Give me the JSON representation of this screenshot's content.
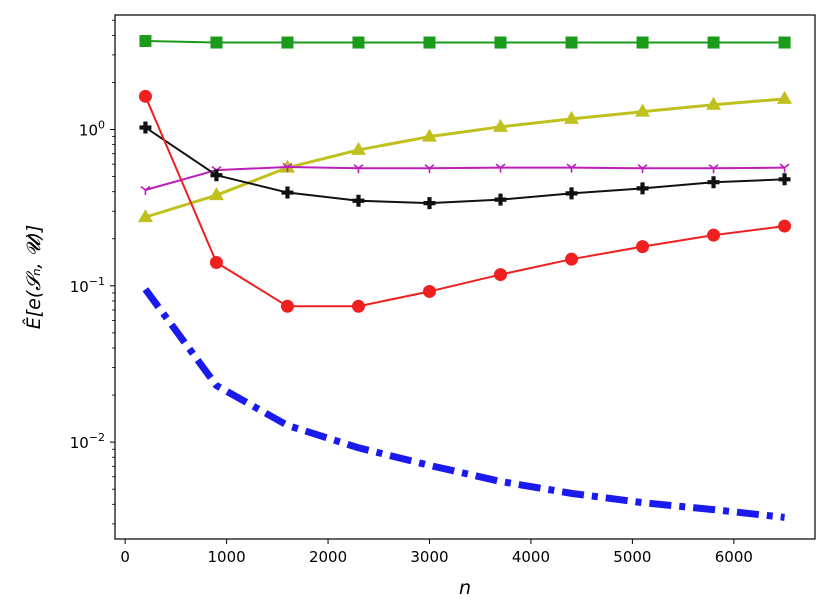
{
  "chart_data": {
    "type": "line",
    "title": "",
    "xlabel": "n",
    "ylabel": "Ê[e(𝓢ₙ, 𝓤)]",
    "xlim": [
      -100,
      6800
    ],
    "ylim": [
      0.0024,
      5.4
    ],
    "yscale": "log",
    "grid": false,
    "legend": "none",
    "x": [
      200,
      900,
      1600,
      2300,
      3000,
      3700,
      4400,
      5100,
      5800,
      6500
    ],
    "x_ticks": [
      {
        "value": 0,
        "label": "0"
      },
      {
        "value": 1000,
        "label": "1000"
      },
      {
        "value": 2000,
        "label": "2000"
      },
      {
        "value": 3000,
        "label": "3000"
      },
      {
        "value": 4000,
        "label": "4000"
      },
      {
        "value": 5000,
        "label": "5000"
      },
      {
        "value": 6000,
        "label": "6000"
      }
    ],
    "y_ticks": [
      {
        "value": 1,
        "base": "10",
        "exp": "0"
      },
      {
        "value": 0.1,
        "base": "10",
        "exp": "−1"
      },
      {
        "value": 0.01,
        "base": "10",
        "exp": "−2"
      }
    ],
    "series": [
      {
        "color": "#1a9c1a",
        "marker": "square",
        "linewidth": 2,
        "dash": "",
        "values": [
          3.68,
          3.6,
          3.6,
          3.6,
          3.6,
          3.6,
          3.6,
          3.6,
          3.6,
          3.6
        ]
      },
      {
        "color": "#c0c01e",
        "marker": "triangle",
        "linewidth": 3,
        "dash": "",
        "values": [
          0.275,
          0.38,
          0.57,
          0.74,
          0.9,
          1.04,
          1.17,
          1.3,
          1.44,
          1.57
        ]
      },
      {
        "color": "#bb1fbb",
        "marker": "tri_down",
        "linewidth": 2,
        "dash": "",
        "values": [
          0.41,
          0.55,
          0.575,
          0.565,
          0.565,
          0.57,
          0.57,
          0.565,
          0.565,
          0.57
        ]
      },
      {
        "color": "#111111",
        "marker": "plus",
        "linewidth": 2,
        "dash": "",
        "values": [
          1.03,
          0.51,
          0.395,
          0.35,
          0.338,
          0.356,
          0.39,
          0.42,
          0.46,
          0.48
        ]
      },
      {
        "color": "#f02020",
        "marker": "circle",
        "linewidth": 2,
        "dash": "",
        "values": [
          1.63,
          0.141,
          0.074,
          0.074,
          0.092,
          0.118,
          0.148,
          0.178,
          0.211,
          0.241
        ]
      },
      {
        "color": "#1a1aee",
        "marker": "none",
        "linewidth": 7,
        "dash": "22 8 6 8",
        "values": [
          0.095,
          0.023,
          0.0128,
          0.0092,
          0.0071,
          0.0056,
          0.0047,
          0.0041,
          0.0037,
          0.0033
        ]
      }
    ]
  }
}
